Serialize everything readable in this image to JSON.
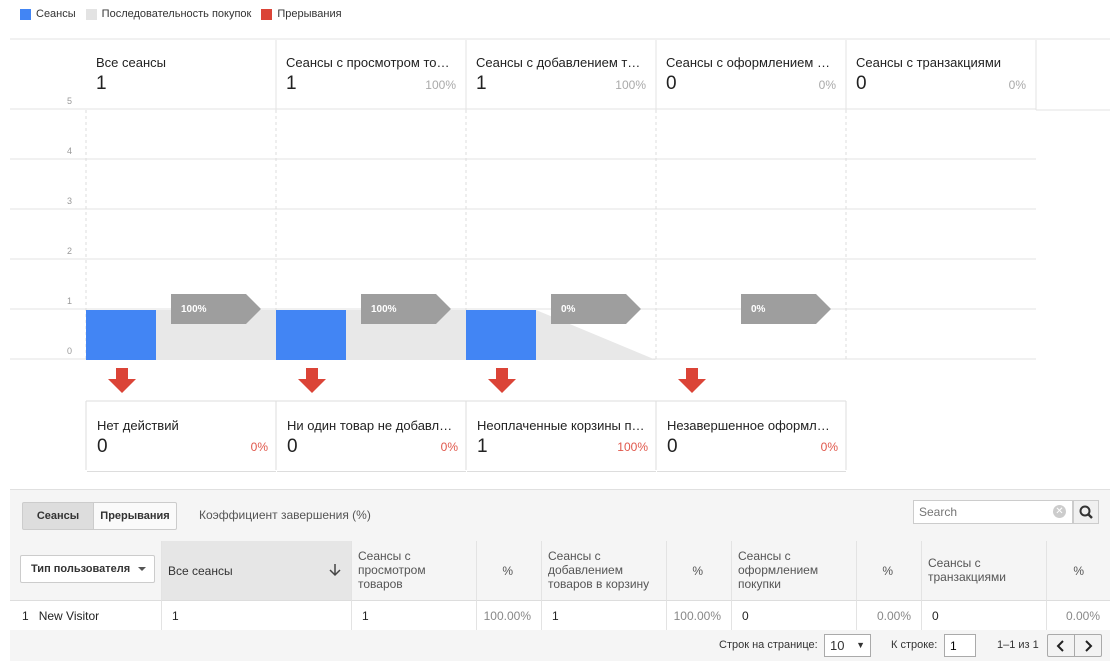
{
  "legend": [
    {
      "label": "Сеансы",
      "color": "#4285f4"
    },
    {
      "label": "Последовательность покупок",
      "color": "#e3e3e3"
    },
    {
      "label": "Прерывания",
      "color": "#db4437"
    }
  ],
  "stages": [
    {
      "name": "Все сеансы",
      "value": "1",
      "pct": ""
    },
    {
      "name": "Сеансы с просмотром товаров",
      "value": "1",
      "pct": "100%"
    },
    {
      "name": "Сеансы с добавлением товаров в корзину",
      "value": "1",
      "pct": "100%"
    },
    {
      "name": "Сеансы с оформлением покупки",
      "value": "0",
      "pct": "0%"
    },
    {
      "name": "Сеансы с транзакциями",
      "value": "0",
      "pct": "0%"
    }
  ],
  "y_ticks": [
    "5",
    "4",
    "3",
    "2",
    "1",
    "0"
  ],
  "arrows": [
    "100%",
    "100%",
    "0%",
    "0%"
  ],
  "chart_data": {
    "type": "bar",
    "categories": [
      "Все сеансы",
      "Сеансы с просмотром товаров",
      "Сеансы с добавлением товаров в корзину",
      "Сеансы с оформлением покупки",
      "Сеансы с транзакциями"
    ],
    "values": [
      1,
      1,
      1,
      0,
      0
    ],
    "ylim": [
      0,
      5
    ],
    "conversions": [
      "100%",
      "100%",
      "0%",
      "0%"
    ]
  },
  "dropoffs": [
    {
      "name": "Нет действий",
      "value": "0",
      "pct": "0%"
    },
    {
      "name": "Ни один товар не добавлен в корзину",
      "value": "0",
      "pct": "0%"
    },
    {
      "name": "Неоплаченные корзины покупок",
      "value": "1",
      "pct": "100%"
    },
    {
      "name": "Незавершенное оформление покупки",
      "value": "0",
      "pct": "0%"
    }
  ],
  "toolbar": {
    "tab_sessions": "Сеансы",
    "tab_abandon": "Прерывания",
    "completion_label": "Коэффициент завершения (%)",
    "search_placeholder": "Search"
  },
  "table": {
    "dimension_label": "Тип пользователя",
    "headers": [
      "Все сеансы",
      "Сеансы с просмотром товаров",
      "%",
      "Сеансы с добавлением товаров в корзину",
      "%",
      "Сеансы с оформлением покупки",
      "%",
      "Сеансы с транзакциями",
      "%"
    ],
    "rows": [
      {
        "index": "1",
        "dimension": "New Visitor",
        "cells": [
          "1",
          "1",
          "100.00%",
          "1",
          "100.00%",
          "0",
          "0.00%",
          "0",
          "0.00%"
        ]
      }
    ]
  },
  "footer": {
    "rows_per_page_label": "Строк на странице:",
    "rows_per_page_value": "10",
    "goto_label": "К строке:",
    "goto_value": "1",
    "range": "1–1 из 1"
  }
}
